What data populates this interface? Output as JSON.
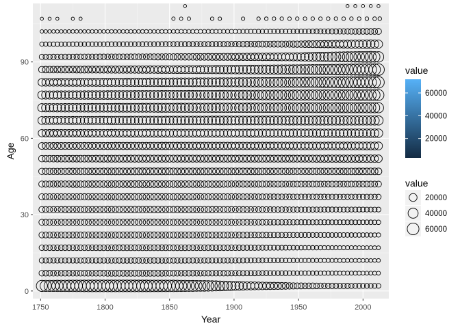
{
  "chart_data": {
    "type": "scatter",
    "title": "",
    "xlabel": "Year",
    "ylabel": "Age",
    "xlim": [
      1744,
      2020
    ],
    "ylim": [
      -3,
      113
    ],
    "x_ticks": [
      1750,
      1800,
      1850,
      1900,
      1950,
      2000
    ],
    "x_tick_labels": [
      "1750",
      "1800",
      "1850",
      "1900",
      "1950",
      "2000"
    ],
    "y_ticks": [
      0,
      30,
      60,
      90
    ],
    "y_tick_labels": [
      "0",
      "30",
      "60",
      "90"
    ],
    "grid": true,
    "x_start": 1751,
    "x_end": 2013,
    "x_step": 3,
    "age_groups": [
      2,
      7,
      12,
      17,
      22,
      27,
      32,
      37,
      42,
      47,
      52,
      57,
      62,
      67,
      72,
      77,
      82,
      87,
      92,
      97,
      102,
      107,
      112
    ],
    "value_profile": {
      "2": [
        [
          1751,
          52000
        ],
        [
          1790,
          60000
        ],
        [
          1850,
          58000
        ],
        [
          1880,
          45000
        ],
        [
          1910,
          22000
        ],
        [
          1950,
          8000
        ],
        [
          2013,
          3000
        ]
      ],
      "7": [
        [
          1751,
          7000
        ],
        [
          1830,
          8500
        ],
        [
          1900,
          6000
        ],
        [
          1950,
          2500
        ],
        [
          2013,
          1000
        ]
      ],
      "12": [
        [
          1751,
          5000
        ],
        [
          1830,
          6500
        ],
        [
          1900,
          5000
        ],
        [
          1950,
          2000
        ],
        [
          2013,
          800
        ]
      ],
      "17": [
        [
          1751,
          6000
        ],
        [
          1830,
          7500
        ],
        [
          1900,
          6000
        ],
        [
          1950,
          2500
        ],
        [
          2013,
          1000
        ]
      ],
      "22": [
        [
          1751,
          7500
        ],
        [
          1830,
          9000
        ],
        [
          1900,
          7500
        ],
        [
          1950,
          4000
        ],
        [
          2013,
          2000
        ]
      ],
      "27": [
        [
          1751,
          8000
        ],
        [
          1830,
          10000
        ],
        [
          1900,
          8000
        ],
        [
          1950,
          4500
        ],
        [
          2013,
          2500
        ]
      ],
      "32": [
        [
          1751,
          8500
        ],
        [
          1830,
          10500
        ],
        [
          1900,
          8500
        ],
        [
          1950,
          5000
        ],
        [
          2013,
          3500
        ]
      ],
      "37": [
        [
          1751,
          9000
        ],
        [
          1830,
          11000
        ],
        [
          1900,
          9000
        ],
        [
          1950,
          6000
        ],
        [
          2013,
          5000
        ]
      ],
      "42": [
        [
          1751,
          9500
        ],
        [
          1830,
          12000
        ],
        [
          1900,
          10000
        ],
        [
          1950,
          8000
        ],
        [
          2013,
          8000
        ]
      ],
      "47": [
        [
          1751,
          10000
        ],
        [
          1830,
          13000
        ],
        [
          1900,
          12000
        ],
        [
          1950,
          11000
        ],
        [
          2013,
          12000
        ]
      ],
      "52": [
        [
          1751,
          11000
        ],
        [
          1830,
          14500
        ],
        [
          1900,
          14000
        ],
        [
          1950,
          14000
        ],
        [
          2013,
          17000
        ]
      ],
      "57": [
        [
          1751,
          12500
        ],
        [
          1830,
          16000
        ],
        [
          1900,
          17000
        ],
        [
          1950,
          18000
        ],
        [
          2013,
          20000
        ]
      ],
      "62": [
        [
          1751,
          16000
        ],
        [
          1830,
          20000
        ],
        [
          1900,
          21000
        ],
        [
          1950,
          23000
        ],
        [
          2013,
          25000
        ]
      ],
      "67": [
        [
          1751,
          20000
        ],
        [
          1830,
          25000
        ],
        [
          1900,
          28000
        ],
        [
          1950,
          30000
        ],
        [
          2013,
          32000
        ]
      ],
      "72": [
        [
          1751,
          23000
        ],
        [
          1830,
          29000
        ],
        [
          1900,
          33000
        ],
        [
          1950,
          37000
        ],
        [
          2013,
          42000
        ]
      ],
      "77": [
        [
          1751,
          22000
        ],
        [
          1830,
          28000
        ],
        [
          1900,
          33000
        ],
        [
          1950,
          40000
        ],
        [
          2013,
          50000
        ]
      ],
      "82": [
        [
          1751,
          18000
        ],
        [
          1830,
          24000
        ],
        [
          1900,
          30000
        ],
        [
          1950,
          40000
        ],
        [
          2013,
          58000
        ]
      ],
      "87": [
        [
          1751,
          11000
        ],
        [
          1830,
          16000
        ],
        [
          1900,
          25000
        ],
        [
          1950,
          35000
        ],
        [
          2013,
          60000
        ]
      ],
      "92": [
        [
          1751,
          5000
        ],
        [
          1830,
          8000
        ],
        [
          1900,
          14000
        ],
        [
          1950,
          22000
        ],
        [
          2005,
          50000
        ],
        [
          2013,
          44000
        ]
      ],
      "97": [
        [
          1751,
          2000
        ],
        [
          1830,
          3500
        ],
        [
          1900,
          6000
        ],
        [
          1950,
          10000
        ],
        [
          2005,
          25000
        ],
        [
          2013,
          22000
        ]
      ],
      "102": [
        [
          1751,
          400
        ],
        [
          1830,
          700
        ],
        [
          1900,
          1500
        ],
        [
          1950,
          3000
        ],
        [
          2013,
          8000
        ]
      ],
      "107": [
        [
          1751,
          100
        ],
        [
          2013,
          700
        ]
      ],
      "112": [
        [
          1751,
          30
        ],
        [
          2013,
          80
        ]
      ]
    },
    "sparse_rows": {
      "107": [
        1751,
        1757,
        1763,
        1775,
        1781,
        1853,
        1859,
        1865,
        1883,
        1889,
        1907,
        1919,
        1925,
        1931,
        1937,
        1943,
        1949,
        1955,
        1961,
        1967,
        1973,
        1979,
        1985,
        1991,
        1997,
        2003,
        2009,
        2013
      ],
      "112": [
        1862,
        1988,
        1994,
        2000,
        2006,
        2012
      ]
    },
    "legends": {
      "color": {
        "title": "value",
        "labels": [
          "20000",
          "40000",
          "60000"
        ],
        "ticks": [
          20000,
          40000,
          60000
        ],
        "range": [
          3000,
          72000
        ],
        "low_color": "#132B43",
        "high_color": "#56B1F7"
      },
      "size": {
        "title": "value",
        "labels": [
          "20000",
          "40000",
          "60000"
        ],
        "values": [
          20000,
          40000,
          60000
        ]
      }
    },
    "colors": {
      "panel_background": "#EBEBEB",
      "grid_major": "#FFFFFF",
      "point_stroke": "#000000"
    }
  }
}
